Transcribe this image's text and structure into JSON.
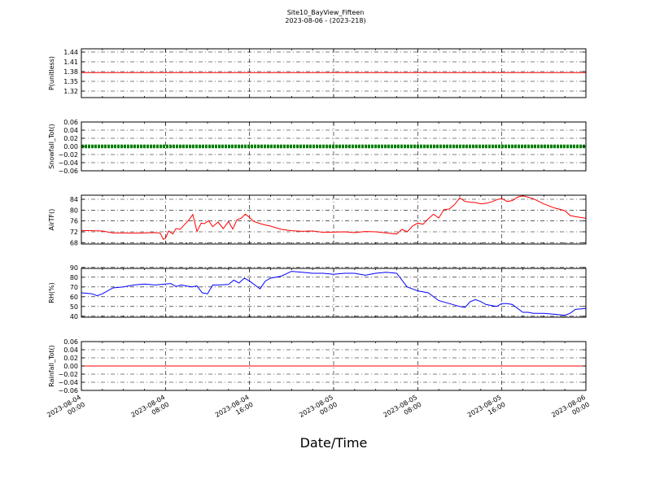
{
  "title": "Site10_BayView_Fifteen",
  "subtitle": "2023-08-06 - (2023-218)",
  "xlabel": "Date/Time",
  "x_ticks": [
    "2023-08-04\n00:00",
    "2023-08-04\n08:00",
    "2023-08-04\n16:00",
    "2023-08-05\n00:00",
    "2023-08-05\n08:00",
    "2023-08-05\n16:00",
    "2023-08-06\n00:00"
  ],
  "colors": {
    "red": "#ff0000",
    "green": "#008000",
    "blue": "#0000ff"
  },
  "chart_data": [
    {
      "type": "line",
      "ylabel": "P(unitless)",
      "ylim": [
        1.3,
        1.45
      ],
      "yticks": [
        "1.32",
        "1.35",
        "1.38",
        "1.41",
        "1.44"
      ],
      "ytick_values": [
        1.32,
        1.35,
        1.38,
        1.41,
        1.44
      ],
      "color": "#ff0000",
      "grid": true,
      "style": "line",
      "x_hours": [
        0,
        48
      ],
      "values": [
        1.377,
        1.377
      ]
    },
    {
      "type": "line",
      "ylabel": "Snowfall_Tot()",
      "ylim": [
        -0.06,
        0.06
      ],
      "yticks": [
        "0.06",
        "0.04",
        "0.02",
        "0.00",
        "−0.02",
        "−0.04",
        "−0.06"
      ],
      "ytick_values": [
        0.06,
        0.04,
        0.02,
        0.0,
        -0.02,
        -0.04,
        -0.06
      ],
      "color": "#008000",
      "grid": true,
      "style": "markers",
      "x_hours": [
        0,
        48
      ],
      "values": [
        0,
        0
      ]
    },
    {
      "type": "line",
      "ylabel": "AirTF()",
      "ylim": [
        67.5,
        85.5
      ],
      "yticks": [
        "84",
        "80",
        "76",
        "72",
        "68"
      ],
      "ytick_values": [
        84,
        80,
        76,
        72,
        68
      ],
      "color": "#ff0000",
      "grid": true,
      "style": "line",
      "x_hours": [
        0,
        1,
        2,
        3,
        4,
        5,
        6,
        7,
        7.5,
        7.8,
        8.0,
        8.3,
        8.7,
        9.0,
        9.4,
        9.8,
        10.2,
        10.6,
        11.0,
        11.4,
        11.7,
        12.1,
        12.5,
        13.0,
        13.5,
        14.0,
        14.4,
        14.8,
        15.2,
        15.6,
        16.0,
        16.4,
        16.8,
        17.4,
        18.0,
        19.0,
        20.0,
        21.0,
        22.0,
        23.0,
        24.0,
        25.0,
        26.0,
        27.0,
        28.0,
        29.0,
        30.0,
        30.5,
        31.0,
        31.5,
        32.0,
        32.5,
        33.0,
        33.5,
        34.0,
        34.5,
        35.0,
        35.5,
        36.0,
        36.5,
        37.0,
        37.5,
        38.0,
        38.5,
        39.0,
        39.5,
        40.0,
        40.5,
        41.0,
        41.5,
        42.0,
        43.0,
        44.0,
        45.0,
        46.0,
        46.5,
        47.0,
        48.0
      ],
      "values": [
        72.5,
        72.4,
        72.3,
        71.6,
        71.6,
        71.5,
        71.6,
        71.7,
        71.5,
        69.2,
        69.6,
        72.3,
        71.2,
        73.2,
        72.9,
        74.6,
        76.2,
        78.4,
        72.1,
        75.2,
        75.0,
        76.1,
        73.9,
        75.6,
        73.2,
        75.8,
        73.0,
        76.4,
        77.0,
        78.5,
        77.3,
        75.8,
        75.3,
        74.6,
        74.1,
        72.9,
        72.4,
        72.2,
        72.3,
        71.8,
        71.9,
        72.0,
        71.7,
        72.1,
        72.0,
        71.6,
        71.2,
        72.9,
        72.0,
        74.1,
        75.2,
        74.8,
        76.8,
        78.5,
        77.1,
        80.2,
        80.4,
        82.0,
        84.5,
        83.2,
        82.9,
        82.8,
        82.3,
        82.5,
        83.0,
        83.8,
        84.3,
        83.2,
        83.5,
        84.8,
        85.3,
        84.2,
        82.3,
        80.8,
        79.8,
        78.0,
        77.6,
        77.0
      ]
    },
    {
      "type": "line",
      "ylabel": "RH(%)",
      "ylim": [
        39,
        89
      ],
      "yticks": [
        "90",
        "80",
        "70",
        "60",
        "50",
        "40"
      ],
      "ytick_values": [
        90,
        80,
        70,
        60,
        50,
        40
      ],
      "color": "#0000ff",
      "grid": true,
      "style": "line",
      "x_hours": [
        0,
        1,
        1.5,
        2,
        3,
        4,
        5,
        6,
        7,
        8,
        8.5,
        9,
        9.5,
        10.0,
        10.5,
        11.0,
        11.5,
        12.0,
        12.5,
        13.0,
        14.0,
        14.5,
        15.0,
        15.5,
        16.0,
        16.5,
        17.0,
        17.5,
        18.0,
        19.0,
        20.0,
        21.0,
        22.0,
        23.0,
        24.0,
        25.0,
        26.0,
        27.0,
        28.0,
        29.0,
        30.0,
        31.0,
        32.0,
        33.0,
        34.0,
        35.0,
        36.0,
        36.5,
        37.0,
        37.5,
        38.0,
        38.5,
        39.0,
        39.5,
        40.0,
        40.5,
        41.0,
        42.0,
        42.5,
        43.0,
        44.0,
        45.0,
        46.0,
        46.5,
        47.0,
        48.0
      ],
      "values": [
        64,
        63,
        61,
        63,
        69,
        70,
        72,
        73,
        72,
        73,
        73.5,
        70.5,
        72,
        71,
        70,
        71,
        64,
        63,
        72,
        72,
        72.5,
        77,
        74,
        79,
        76,
        72,
        68,
        76,
        79,
        81,
        86,
        85,
        84,
        84,
        83,
        84,
        84,
        82,
        84,
        85,
        84,
        70,
        66,
        64,
        56,
        53,
        50,
        49,
        55,
        57,
        55,
        52,
        51,
        50,
        53,
        53,
        52,
        44,
        44,
        43,
        43,
        42,
        41,
        43,
        47,
        48
      ]
    },
    {
      "type": "line",
      "ylabel": "Rainfall_Tot()",
      "ylim": [
        -0.06,
        0.06
      ],
      "yticks": [
        "0.06",
        "0.04",
        "0.02",
        "0.00",
        "−0.02",
        "−0.04",
        "−0.06"
      ],
      "ytick_values": [
        0.06,
        0.04,
        0.02,
        0.0,
        -0.02,
        -0.04,
        -0.06
      ],
      "color": "#ff0000",
      "grid": true,
      "style": "line",
      "x_hours": [
        0,
        48
      ],
      "values": [
        0,
        0
      ]
    }
  ]
}
